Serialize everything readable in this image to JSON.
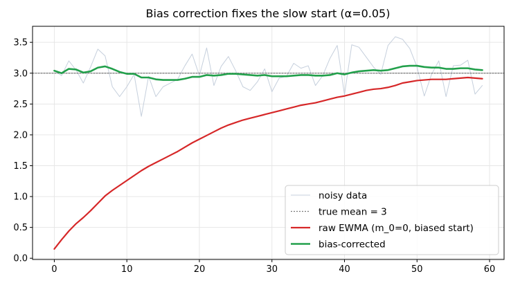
{
  "chart_data": {
    "type": "line",
    "title": "Bias correction fixes the slow start  (α=0.05)",
    "xlabel": "",
    "ylabel": "",
    "xlim": [
      -3,
      62
    ],
    "ylim": [
      -0.02,
      3.76
    ],
    "xticks": [
      0,
      10,
      20,
      30,
      40,
      50,
      60
    ],
    "yticks": [
      0.0,
      0.5,
      1.0,
      1.5,
      2.0,
      2.5,
      3.0,
      3.5
    ],
    "grid": true,
    "legend_position": "lower-right",
    "x": [
      0,
      1,
      2,
      3,
      4,
      5,
      6,
      7,
      8,
      9,
      10,
      11,
      12,
      13,
      14,
      15,
      16,
      17,
      18,
      19,
      20,
      21,
      22,
      23,
      24,
      25,
      26,
      27,
      28,
      29,
      30,
      31,
      32,
      33,
      34,
      35,
      36,
      37,
      38,
      39,
      40,
      41,
      42,
      43,
      44,
      45,
      46,
      47,
      48,
      49,
      50,
      51,
      52,
      53,
      54,
      55,
      56,
      57,
      58,
      59
    ],
    "series": [
      {
        "name": "noisy data",
        "color": "#c5cfdc",
        "values": [
          3.04,
          2.96,
          3.2,
          3.05,
          2.84,
          3.1,
          3.39,
          3.28,
          2.78,
          2.62,
          2.78,
          2.98,
          2.3,
          2.95,
          2.62,
          2.78,
          2.84,
          2.9,
          3.12,
          3.31,
          2.96,
          3.41,
          2.8,
          3.11,
          3.27,
          3.04,
          2.78,
          2.72,
          2.86,
          3.07,
          2.7,
          2.92,
          2.95,
          3.16,
          3.08,
          3.12,
          2.8,
          2.96,
          3.24,
          3.45,
          2.65,
          3.46,
          3.42,
          3.26,
          3.1,
          2.98,
          3.45,
          3.59,
          3.55,
          3.4,
          3.1,
          2.63,
          2.98,
          3.2,
          2.62,
          3.12,
          3.13,
          3.21,
          2.66,
          2.8
        ]
      },
      {
        "name": "true mean = 3",
        "color": "#777777",
        "values": [
          3,
          3,
          3,
          3,
          3,
          3,
          3,
          3,
          3,
          3,
          3,
          3,
          3,
          3,
          3,
          3,
          3,
          3,
          3,
          3,
          3,
          3,
          3,
          3,
          3,
          3,
          3,
          3,
          3,
          3,
          3,
          3,
          3,
          3,
          3,
          3,
          3,
          3,
          3,
          3,
          3,
          3,
          3,
          3,
          3,
          3,
          3,
          3,
          3,
          3,
          3,
          3,
          3,
          3,
          3,
          3,
          3,
          3,
          3,
          3
        ]
      },
      {
        "name": "raw EWMA (m_0=0, biased start)",
        "color": "#d62728",
        "values": [
          0.15,
          0.3,
          0.44,
          0.56,
          0.66,
          0.77,
          0.89,
          1.01,
          1.1,
          1.18,
          1.26,
          1.34,
          1.42,
          1.49,
          1.55,
          1.61,
          1.67,
          1.73,
          1.8,
          1.87,
          1.93,
          1.99,
          2.05,
          2.11,
          2.16,
          2.2,
          2.24,
          2.27,
          2.3,
          2.33,
          2.36,
          2.39,
          2.42,
          2.45,
          2.48,
          2.5,
          2.52,
          2.55,
          2.58,
          2.61,
          2.63,
          2.66,
          2.69,
          2.72,
          2.74,
          2.75,
          2.77,
          2.8,
          2.84,
          2.86,
          2.88,
          2.89,
          2.9,
          2.9,
          2.9,
          2.91,
          2.92,
          2.93,
          2.92,
          2.91
        ]
      },
      {
        "name": "bias-corrected",
        "color": "#22a04b",
        "values": [
          3.04,
          3.0,
          3.07,
          3.06,
          3.01,
          3.03,
          3.09,
          3.11,
          3.07,
          3.02,
          2.99,
          2.99,
          2.93,
          2.93,
          2.9,
          2.89,
          2.89,
          2.89,
          2.91,
          2.94,
          2.94,
          2.97,
          2.96,
          2.97,
          2.99,
          2.99,
          2.98,
          2.97,
          2.96,
          2.97,
          2.95,
          2.95,
          2.95,
          2.96,
          2.97,
          2.97,
          2.96,
          2.96,
          2.97,
          3.0,
          2.98,
          3.01,
          3.03,
          3.04,
          3.05,
          3.04,
          3.05,
          3.08,
          3.11,
          3.12,
          3.12,
          3.1,
          3.09,
          3.09,
          3.07,
          3.07,
          3.08,
          3.08,
          3.06,
          3.05
        ]
      }
    ]
  }
}
